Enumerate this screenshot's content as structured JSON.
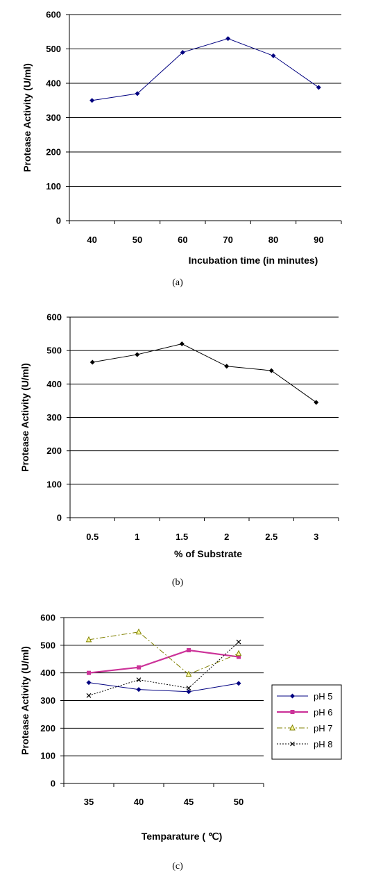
{
  "chart_data": [
    {
      "type": "line",
      "caption": "(a)",
      "xlabel": "Incubation time (in minutes)",
      "ylabel": "Protease Activity (U/ml)",
      "categories": [
        "40",
        "50",
        "60",
        "70",
        "80",
        "90"
      ],
      "series": [
        {
          "values": [
            350,
            370,
            490,
            530,
            480,
            388
          ],
          "color": "#000080",
          "marker": "diamond"
        }
      ],
      "ylim": [
        0,
        600
      ],
      "yticks": [
        "0",
        "100",
        "200",
        "300",
        "400",
        "500",
        "600"
      ],
      "grid": true
    },
    {
      "type": "line",
      "caption": "(b)",
      "xlabel": "% of Substrate",
      "ylabel": "Protease Activity (U/ml)",
      "categories": [
        "0.5",
        "1",
        "1.5",
        "2",
        "2.5",
        "3"
      ],
      "series": [
        {
          "values": [
            465,
            488,
            520,
            453,
            440,
            345
          ],
          "color": "#000000",
          "marker": "diamond"
        }
      ],
      "ylim": [
        0,
        600
      ],
      "yticks": [
        "0",
        "100",
        "200",
        "300",
        "400",
        "500",
        "600"
      ],
      "grid": true
    },
    {
      "type": "line",
      "caption": "(c)",
      "xlabel": "Temparature ( ℃)",
      "ylabel": "Protease Activity (U/ml)",
      "categories": [
        "35",
        "40",
        "45",
        "50"
      ],
      "series": [
        {
          "name": "pH 5",
          "values": [
            365,
            340,
            332,
            362
          ],
          "color": "#000080",
          "marker": "diamond",
          "dash": "none",
          "width": 1
        },
        {
          "name": "pH 6",
          "values": [
            400,
            420,
            482,
            458
          ],
          "color": "#cc3399",
          "marker": "square",
          "dash": "none",
          "width": 2.2
        },
        {
          "name": "pH 7",
          "values": [
            520,
            548,
            395,
            470
          ],
          "color": "#808000",
          "marker": "triangle",
          "dash": "8,3,2,3",
          "width": 1
        },
        {
          "name": "pH 8",
          "values": [
            318,
            375,
            345,
            512
          ],
          "color": "#000000",
          "marker": "x",
          "dash": "2,2",
          "width": 1
        }
      ],
      "ylim": [
        0,
        600
      ],
      "yticks": [
        "0",
        "100",
        "200",
        "300",
        "400",
        "500",
        "600"
      ],
      "grid": true,
      "legend": "right"
    }
  ]
}
